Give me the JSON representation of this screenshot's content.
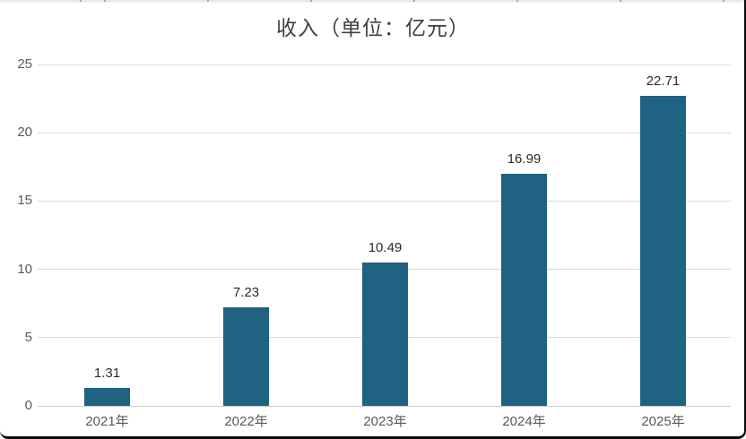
{
  "chart": {
    "title": "收入（单位：亿元）"
  },
  "chart_data": {
    "type": "bar",
    "title": "收入（单位：亿元）",
    "categories": [
      "2021年",
      "2022年",
      "2023年",
      "2024年",
      "2025年"
    ],
    "values": [
      1.31,
      7.23,
      10.49,
      16.99,
      22.71
    ],
    "value_labels": [
      "1.31",
      "7.23",
      "10.49",
      "16.99",
      "22.71"
    ],
    "xlabel": "",
    "ylabel": "",
    "ylim": [
      0,
      25
    ],
    "yticks": [
      0,
      5,
      10,
      15,
      20,
      25
    ],
    "grid": true,
    "legend": "none",
    "bar_color": "#1f6281",
    "gridline_color": "#d9d9d9",
    "title_color": "#404040",
    "axis_label_color": "#595959",
    "value_label_color": "#2b2b2b"
  }
}
